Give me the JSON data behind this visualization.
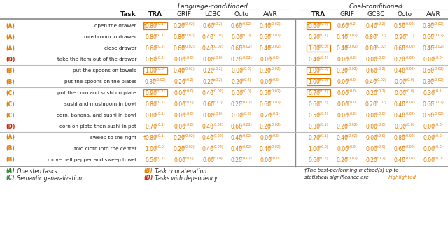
{
  "title_lang": "Language-conditioned",
  "title_goal": "Goal-conditioned",
  "lang_cols": [
    "TRA",
    "GRIF",
    "LCBC",
    "Octo",
    "AWR"
  ],
  "goal_cols": [
    "TRA",
    "GRIF",
    "GCBC",
    "Octo",
    "AWR"
  ],
  "rows": [
    {
      "label": "A",
      "label_color": "orange",
      "task": "open the drawer",
      "lang": [
        "0.80(±0.1)",
        "0.20(±0.02)",
        "0.60(±0.2)",
        "0.60(±0.02)",
        "0.40(±0.02)"
      ],
      "goal": [
        "0.60(±0.2)",
        "0.60(±0.2)",
        "0.40(±0.2)",
        "0.50(±0.02)",
        "0.80(±0.02)"
      ],
      "lang_dagger": [
        true,
        false,
        false,
        false,
        false
      ],
      "goal_dagger": [
        true,
        false,
        false,
        false,
        false
      ],
      "lang_highlight": [
        true,
        false,
        false,
        false,
        false
      ],
      "goal_highlight": [
        true,
        false,
        false,
        false,
        false
      ],
      "group": 0
    },
    {
      "label": "A",
      "label_color": "orange",
      "task": "mushroom in drawer",
      "lang": [
        "0.80(±0.1)",
        "0.80(±0.02)",
        "0.40(±0.02)",
        "0.00(±0.0)",
        "0.60(±0.02)"
      ],
      "goal": [
        "0.90(±0.1)",
        "0.40(±0.02)",
        "0.80(±0.02)",
        "0.90(±0.1)",
        "0.60(±0.02)"
      ],
      "lang_dagger": [
        false,
        false,
        false,
        false,
        false
      ],
      "goal_dagger": [
        false,
        false,
        false,
        false,
        false
      ],
      "lang_highlight": [
        false,
        false,
        false,
        false,
        false
      ],
      "goal_highlight": [
        false,
        false,
        false,
        false,
        false
      ],
      "group": 0
    },
    {
      "label": "A",
      "label_color": "orange",
      "task": "close drawer",
      "lang": [
        "0.60(±0.2)",
        "0.60(±0.02)",
        "0.40(±0.02)",
        "0.60(±0.02)",
        "0.40(±0.02)"
      ],
      "goal": [
        "1.00(±0.0)",
        "0.40(±0.02)",
        "0.80(±0.02)",
        "0.60(±0.02)",
        "0.40(±0.02)"
      ],
      "lang_dagger": [
        false,
        false,
        false,
        false,
        false
      ],
      "goal_dagger": [
        false,
        false,
        false,
        false,
        false
      ],
      "lang_highlight": [
        false,
        false,
        false,
        false,
        false
      ],
      "goal_highlight": [
        true,
        false,
        false,
        false,
        false
      ],
      "group": 0
    },
    {
      "label": "D",
      "label_color": "red",
      "task": "take the item out of the drawer",
      "lang": [
        "0.60(±0.2)",
        "0.00(±0.0)",
        "0.00(±0.0)",
        "0.20(±0.02)",
        "0.00(±0.0)"
      ],
      "goal": [
        "0.40(±0.2)",
        "0.00(±0.0)",
        "0.00(±0.0)",
        "0.20(±0.02)",
        "0.00(±0.0)"
      ],
      "lang_dagger": [
        false,
        false,
        false,
        false,
        false
      ],
      "goal_dagger": [
        false,
        false,
        false,
        false,
        false
      ],
      "lang_highlight": [
        false,
        false,
        false,
        false,
        false
      ],
      "goal_highlight": [
        false,
        false,
        false,
        false,
        false
      ],
      "group": 0
    },
    {
      "label": "B",
      "label_color": "orange",
      "task": "put the spoons on towels",
      "lang": [
        "1.00(±0.0)",
        "0.40(±0.02)",
        "0.20(±0.2)",
        "0.00(±0.0)",
        "0.20(±0.02)"
      ],
      "goal": [
        "1.00(±0.0)",
        "0.20(±0.02)",
        "0.60(±0.2)",
        "0.40(±0.02)",
        "0.60(±0.02)"
      ],
      "lang_dagger": [
        false,
        false,
        false,
        false,
        false
      ],
      "goal_dagger": [
        false,
        false,
        false,
        false,
        false
      ],
      "lang_highlight": [
        true,
        false,
        false,
        false,
        false
      ],
      "goal_highlight": [
        true,
        false,
        false,
        false,
        false
      ],
      "group": 1
    },
    {
      "label": "B",
      "label_color": "orange",
      "task": "put the spoons on the plates",
      "lang": [
        "0.80(±0.02)",
        "0.20(±0.2)",
        "0.20(±0.2)",
        "0.20(±0.2)",
        "0.00(±0.0)"
      ],
      "goal": [
        "1.00(±0.0)",
        "0.00(±0.0)",
        "0.40(±0.02)",
        "0.00(±0.0)",
        "0.80(±0.02)"
      ],
      "lang_dagger": [
        false,
        false,
        false,
        false,
        false
      ],
      "goal_dagger": [
        false,
        false,
        false,
        false,
        false
      ],
      "lang_highlight": [
        false,
        false,
        false,
        false,
        false
      ],
      "goal_highlight": [
        true,
        false,
        false,
        false,
        false
      ],
      "group": 1
    },
    {
      "label": "C",
      "label_color": "orange",
      "task": "put the corn and sushi on plate",
      "lang": [
        "0.90(±0.1)",
        "0.00(±0.0)",
        "0.40(±0.02)",
        "0.00(±0.0)",
        "0.50(±0.02)"
      ],
      "goal": [
        "0.70(±0.1)",
        "0.00(±0.0)",
        "0.20(±0.2)",
        "0.00(±0.0)",
        "0.30(±0.1)"
      ],
      "lang_dagger": [
        false,
        false,
        false,
        false,
        false
      ],
      "goal_dagger": [
        false,
        false,
        false,
        false,
        false
      ],
      "lang_highlight": [
        true,
        false,
        false,
        false,
        false
      ],
      "goal_highlight": [
        true,
        false,
        false,
        false,
        false
      ],
      "group": 2
    },
    {
      "label": "C",
      "label_color": "orange",
      "task": "sushi and mushroom in bowl",
      "lang": [
        "0.80(±0.2)",
        "0.00(±0.0)",
        "0.60(±0.2)",
        "0.20(±0.02)",
        "0.60(±0.02)"
      ],
      "goal": [
        "0.60(±0.2)",
        "0.00(±0.0)",
        "0.20(±0.02)",
        "0.40(±0.02)",
        "0.60(±0.02)"
      ],
      "lang_dagger": [
        false,
        false,
        false,
        false,
        false
      ],
      "goal_dagger": [
        false,
        false,
        false,
        false,
        false
      ],
      "lang_highlight": [
        false,
        false,
        false,
        false,
        false
      ],
      "goal_highlight": [
        false,
        false,
        false,
        false,
        false
      ],
      "group": 2
    },
    {
      "label": "C",
      "label_color": "orange",
      "task": "corn, banana, and sushi in bowl",
      "lang": [
        "0.80(±0.1)",
        "0.00(±0.0)",
        "0.00(±0.0)",
        "0.00(±0.0)",
        "0.20(±0.1)"
      ],
      "goal": [
        "0.50(±0.2)",
        "0.00(±0.0)",
        "0.00(±0.0)",
        "0.40(±0.02)",
        "0.50(±0.02)"
      ],
      "lang_dagger": [
        false,
        false,
        false,
        false,
        false
      ],
      "goal_dagger": [
        false,
        false,
        false,
        false,
        false
      ],
      "lang_highlight": [
        false,
        false,
        false,
        false,
        false
      ],
      "goal_highlight": [
        false,
        false,
        false,
        false,
        false
      ],
      "group": 2
    },
    {
      "label": "D",
      "label_color": "red",
      "task": "corn on plate then sushi in pot",
      "lang": [
        "0.70(±0.1)",
        "0.00(±0.0)",
        "0.40(±0.02)",
        "0.60(±0.02)",
        "0.20(±0.02)"
      ],
      "goal": [
        "0.30(±0.1)",
        "0.20(±0.02)",
        "0.00(±0.0)",
        "0.00(±0.0)",
        "0.00(±0.0)"
      ],
      "lang_dagger": [
        false,
        false,
        false,
        false,
        false
      ],
      "goal_dagger": [
        false,
        false,
        false,
        false,
        false
      ],
      "lang_highlight": [
        false,
        false,
        false,
        false,
        false
      ],
      "goal_highlight": [
        false,
        false,
        false,
        false,
        false
      ],
      "group": 2
    },
    {
      "label": "A",
      "label_color": "orange",
      "task": "sweep to the right",
      "lang": [
        "0.80(±0.1)",
        "0.20(±0.02)",
        "0.40(±0.02)",
        "0.40(±0.02)",
        "0.00(±0.0)"
      ],
      "goal": [
        "0.70(±0.1)",
        "0.40(±0.02)",
        "0.00(±0.0)",
        "0.80(±0.02)",
        "0.00(±0.0)"
      ],
      "lang_dagger": [
        true,
        false,
        false,
        false,
        false
      ],
      "goal_dagger": [
        false,
        false,
        false,
        false,
        false
      ],
      "lang_highlight": [
        false,
        false,
        false,
        false,
        false
      ],
      "goal_highlight": [
        false,
        false,
        false,
        false,
        false
      ],
      "group": 3
    },
    {
      "label": "B",
      "label_color": "orange",
      "task": "fold cloth into the center",
      "lang": [
        "1.00(±0.0)",
        "0.20(±0.02)",
        "0.40(±0.02)",
        "0.40(±0.02)",
        "0.40(±0.02)"
      ],
      "goal": [
        "1.00(±0.0)",
        "0.00(±0.0)",
        "0.00(±0.0)",
        "0.60(±0.02)",
        "0.00(±0.0)"
      ],
      "lang_dagger": [
        false,
        false,
        false,
        false,
        false
      ],
      "goal_dagger": [
        false,
        false,
        false,
        false,
        false
      ],
      "lang_highlight": [
        false,
        false,
        false,
        false,
        false
      ],
      "goal_highlight": [
        false,
        false,
        false,
        false,
        false
      ],
      "group": 3
    },
    {
      "label": "B",
      "label_color": "orange",
      "task": "move bell pepper and sweep towel",
      "lang": [
        "0.50(±0.2)",
        "0.00(±0.0)",
        "0.00(±0.0)",
        "0.20(±0.02)",
        "0.00(±0.0)"
      ],
      "goal": [
        "0.60(±0.2)",
        "0.20(±0.02)",
        "0.20(±0.2)",
        "0.40(±0.02)",
        "0.00(±0.0)"
      ],
      "lang_dagger": [
        false,
        false,
        false,
        false,
        false
      ],
      "goal_dagger": [
        false,
        false,
        false,
        false,
        false
      ],
      "lang_highlight": [
        false,
        false,
        false,
        false,
        false
      ],
      "goal_highlight": [
        false,
        false,
        false,
        false,
        false
      ],
      "group": 3
    }
  ],
  "orange": "#e07b00",
  "red": "#cc2200",
  "dark": "#1a1a1a",
  "gray": "#888888",
  "light_gray": "#bbbbbb",
  "green": "#2e7d32",
  "footer": [
    {
      "text": "(A) One step tasks",
      "color": "green"
    },
    {
      "text": "(C) Semantic generalization",
      "color": "green"
    },
    {
      "text": "(B) Task concatenation",
      "color": "orange"
    },
    {
      "text": "(D) Tasks with dependency",
      "color": "orange"
    }
  ],
  "footer_note_black": "†The best-performing method(s) up to\nstatistical significance are ",
  "footer_note_orange": "highlighted"
}
